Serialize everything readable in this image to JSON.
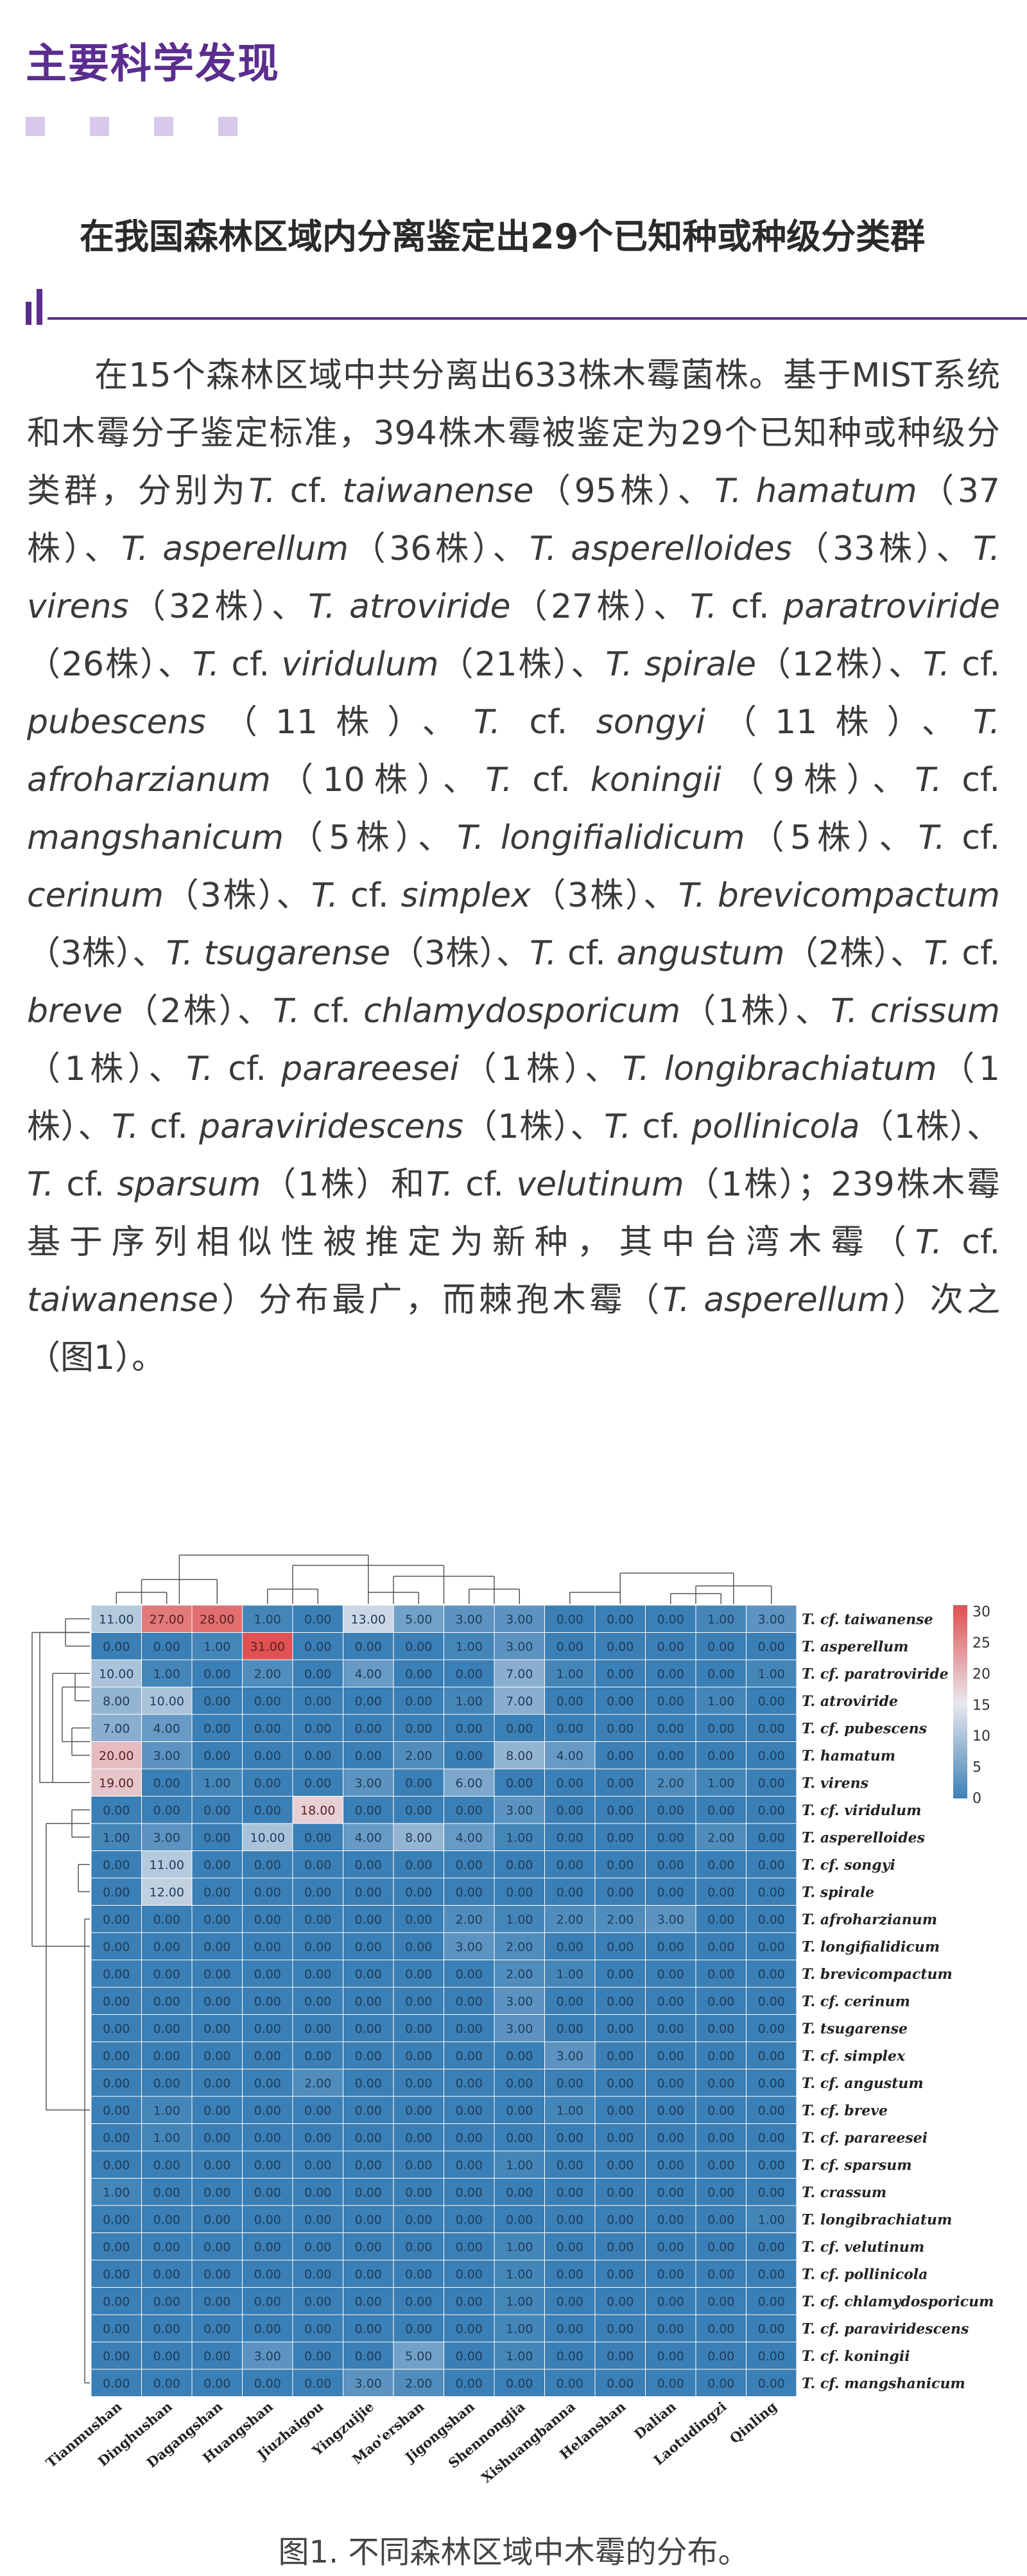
{
  "header": {
    "title": "主要科学发现"
  },
  "subheading": {
    "title": "在我国森林区域内分离鉴定出29个已知种或种级分类群"
  },
  "paragraph": [
    {
      "t": "在15个森林区域中共分离出633株木霉菌株。基于MIST系统和木霉分子鉴定标准，394株木霉被鉴定为29个已知种或种级分类群，分别为"
    },
    {
      "t": "T.",
      "i": 1
    },
    {
      "t": " cf. "
    },
    {
      "t": "taiwanense",
      "i": 1
    },
    {
      "t": "（95株）、"
    },
    {
      "t": "T. hamatum",
      "i": 1
    },
    {
      "t": "（37株）、"
    },
    {
      "t": "T. asperellum",
      "i": 1
    },
    {
      "t": "（36株）、"
    },
    {
      "t": "T. asperelloides",
      "i": 1
    },
    {
      "t": "（33株）、"
    },
    {
      "t": "T. virens",
      "i": 1
    },
    {
      "t": "（32株）、"
    },
    {
      "t": "T. atroviride",
      "i": 1
    },
    {
      "t": "（27株）、"
    },
    {
      "t": "T.",
      "i": 1
    },
    {
      "t": " cf. "
    },
    {
      "t": "paratroviride",
      "i": 1
    },
    {
      "t": "（26株）、"
    },
    {
      "t": "T.",
      "i": 1
    },
    {
      "t": " cf. "
    },
    {
      "t": "viridulum",
      "i": 1
    },
    {
      "t": "（21株）、"
    },
    {
      "t": "T. spirale",
      "i": 1
    },
    {
      "t": "（12株）、"
    },
    {
      "t": "T.",
      "i": 1
    },
    {
      "t": " cf. "
    },
    {
      "t": "pubescens",
      "i": 1
    },
    {
      "t": "（11株）、"
    },
    {
      "t": "T.",
      "i": 1
    },
    {
      "t": " cf. "
    },
    {
      "t": "songyi",
      "i": 1
    },
    {
      "t": "（11株）、"
    },
    {
      "t": "T. afroharzianum",
      "i": 1
    },
    {
      "t": "（10株）、"
    },
    {
      "t": "T.",
      "i": 1
    },
    {
      "t": " cf. "
    },
    {
      "t": "koningii",
      "i": 1
    },
    {
      "t": "（9株）、"
    },
    {
      "t": "T.",
      "i": 1
    },
    {
      "t": " cf. "
    },
    {
      "t": "mangshanicum",
      "i": 1
    },
    {
      "t": "（5株）、"
    },
    {
      "t": "T. longifialidicum",
      "i": 1
    },
    {
      "t": "（5株）、"
    },
    {
      "t": "T.",
      "i": 1
    },
    {
      "t": " cf. "
    },
    {
      "t": "cerinum",
      "i": 1
    },
    {
      "t": "（3株）、"
    },
    {
      "t": "T.",
      "i": 1
    },
    {
      "t": " cf. "
    },
    {
      "t": "simplex",
      "i": 1
    },
    {
      "t": "（3株）、"
    },
    {
      "t": "T. brevicompactum",
      "i": 1
    },
    {
      "t": "（3株）、"
    },
    {
      "t": "T. tsugarense",
      "i": 1
    },
    {
      "t": "（3株）、"
    },
    {
      "t": "T.",
      "i": 1
    },
    {
      "t": " cf. "
    },
    {
      "t": "angustum",
      "i": 1
    },
    {
      "t": "（2株）、"
    },
    {
      "t": "T.",
      "i": 1
    },
    {
      "t": " cf. "
    },
    {
      "t": "breve",
      "i": 1
    },
    {
      "t": "（2株）、"
    },
    {
      "t": "T.",
      "i": 1
    },
    {
      "t": " cf. "
    },
    {
      "t": "chlamydosporicum",
      "i": 1
    },
    {
      "t": "（1株）、"
    },
    {
      "t": "T. crissum",
      "i": 1
    },
    {
      "t": "（1株）、"
    },
    {
      "t": "T.",
      "i": 1
    },
    {
      "t": " cf. "
    },
    {
      "t": "parareesei",
      "i": 1
    },
    {
      "t": "（1株）、"
    },
    {
      "t": "T. longibrachiatum",
      "i": 1
    },
    {
      "t": "（1株）、"
    },
    {
      "t": "T.",
      "i": 1
    },
    {
      "t": " cf. "
    },
    {
      "t": "paraviridescens",
      "i": 1
    },
    {
      "t": "（1株）、"
    },
    {
      "t": "T.",
      "i": 1
    },
    {
      "t": " cf. "
    },
    {
      "t": "pollinicola",
      "i": 1
    },
    {
      "t": "（1株）、"
    },
    {
      "t": "T.",
      "i": 1
    },
    {
      "t": " cf. "
    },
    {
      "t": "sparsum",
      "i": 1
    },
    {
      "t": "（1株）和"
    },
    {
      "t": "T.",
      "i": 1
    },
    {
      "t": " cf. "
    },
    {
      "t": "velutinum",
      "i": 1
    },
    {
      "t": "（1株）；239株木霉基于序列相似性被推定为新种，其中台湾木霉（"
    },
    {
      "t": "T.",
      "i": 1
    },
    {
      "t": " cf. "
    },
    {
      "t": "taiwanense",
      "i": 1
    },
    {
      "t": "）分布最广，而棘孢木霉（"
    },
    {
      "t": "T. asperellum",
      "i": 1
    },
    {
      "t": "）次之（图1）。"
    }
  ],
  "chart_data": {
    "type": "heatmap",
    "columns": [
      "Tianmushan",
      "Dinghushan",
      "Dagangshan",
      "Huangshan",
      "Jiuzhaigou",
      "Yingzuijie",
      "Mao'ershan",
      "Jigongshan",
      "Shennongjia",
      "Xishuangbanna",
      "Helanshan",
      "Dalian",
      "Laotudingzi",
      "Qinling"
    ],
    "rows": [
      "T. cf. taiwanense",
      "T. asperellum",
      "T. cf. paratroviride",
      "T. atroviride",
      "T. cf. pubescens",
      "T. hamatum",
      "T. virens",
      "T. cf. viridulum",
      "T. asperelloides",
      "T. cf. songyi",
      "T. spirale",
      "T. afroharzianum",
      "T. longifialidicum",
      "T. brevicompactum",
      "T. cf. cerinum",
      "T. tsugarense",
      "T. cf. simplex",
      "T. cf. angustum",
      "T. cf. breve",
      "T. cf. parareesei",
      "T. cf. sparsum",
      "T. crassum",
      "T. longibrachiatum",
      "T. cf. velutinum",
      "T. cf. pollinicola",
      "T. cf. chlamydosporicum",
      "T. cf. paraviridescens",
      "T. cf. koningii",
      "T. cf. mangshanicum"
    ],
    "values": [
      [
        11,
        27,
        28,
        1,
        0,
        13,
        5,
        3,
        3,
        0,
        0,
        0,
        1,
        3
      ],
      [
        0,
        0,
        1,
        31,
        0,
        0,
        0,
        1,
        3,
        0,
        0,
        0,
        0,
        0
      ],
      [
        10,
        1,
        0,
        2,
        0,
        4,
        0,
        0,
        7,
        1,
        0,
        0,
        0,
        1
      ],
      [
        8,
        10,
        0,
        0,
        0,
        0,
        0,
        1,
        7,
        0,
        0,
        0,
        1,
        0
      ],
      [
        7,
        4,
        0,
        0,
        0,
        0,
        0,
        0,
        0,
        0,
        0,
        0,
        0,
        0
      ],
      [
        20,
        3,
        0,
        0,
        0,
        0,
        2,
        0,
        8,
        4,
        0,
        0,
        0,
        0
      ],
      [
        19,
        0,
        1,
        0,
        0,
        3,
        0,
        6,
        0,
        0,
        0,
        2,
        1,
        0
      ],
      [
        0,
        0,
        0,
        0,
        18,
        0,
        0,
        0,
        3,
        0,
        0,
        0,
        0,
        0
      ],
      [
        1,
        3,
        0,
        10,
        0,
        4,
        8,
        4,
        1,
        0,
        0,
        0,
        2,
        0
      ],
      [
        0,
        11,
        0,
        0,
        0,
        0,
        0,
        0,
        0,
        0,
        0,
        0,
        0,
        0
      ],
      [
        0,
        12,
        0,
        0,
        0,
        0,
        0,
        0,
        0,
        0,
        0,
        0,
        0,
        0
      ],
      [
        0,
        0,
        0,
        0,
        0,
        0,
        0,
        2,
        1,
        2,
        2,
        3,
        0,
        0
      ],
      [
        0,
        0,
        0,
        0,
        0,
        0,
        0,
        3,
        2,
        0,
        0,
        0,
        0,
        0
      ],
      [
        0,
        0,
        0,
        0,
        0,
        0,
        0,
        0,
        2,
        1,
        0,
        0,
        0,
        0
      ],
      [
        0,
        0,
        0,
        0,
        0,
        0,
        0,
        0,
        3,
        0,
        0,
        0,
        0,
        0
      ],
      [
        0,
        0,
        0,
        0,
        0,
        0,
        0,
        0,
        3,
        0,
        0,
        0,
        0,
        0
      ],
      [
        0,
        0,
        0,
        0,
        0,
        0,
        0,
        0,
        0,
        3,
        0,
        0,
        0,
        0
      ],
      [
        0,
        0,
        0,
        0,
        2,
        0,
        0,
        0,
        0,
        0,
        0,
        0,
        0,
        0
      ],
      [
        0,
        1,
        0,
        0,
        0,
        0,
        0,
        0,
        0,
        1,
        0,
        0,
        0,
        0
      ],
      [
        0,
        1,
        0,
        0,
        0,
        0,
        0,
        0,
        0,
        0,
        0,
        0,
        0,
        0
      ],
      [
        0,
        0,
        0,
        0,
        0,
        0,
        0,
        0,
        1,
        0,
        0,
        0,
        0,
        0
      ],
      [
        1,
        0,
        0,
        0,
        0,
        0,
        0,
        0,
        0,
        0,
        0,
        0,
        0,
        0
      ],
      [
        0,
        0,
        0,
        0,
        0,
        0,
        0,
        0,
        0,
        0,
        0,
        0,
        0,
        1
      ],
      [
        0,
        0,
        0,
        0,
        0,
        0,
        0,
        0,
        1,
        0,
        0,
        0,
        0,
        0
      ],
      [
        0,
        0,
        0,
        0,
        0,
        0,
        0,
        0,
        1,
        0,
        0,
        0,
        0,
        0
      ],
      [
        0,
        0,
        0,
        0,
        0,
        0,
        0,
        0,
        1,
        0,
        0,
        0,
        0,
        0
      ],
      [
        0,
        0,
        0,
        0,
        0,
        0,
        0,
        0,
        1,
        0,
        0,
        0,
        0,
        0
      ],
      [
        0,
        0,
        0,
        3,
        0,
        0,
        5,
        0,
        1,
        0,
        0,
        0,
        0,
        0
      ],
      [
        0,
        0,
        0,
        0,
        0,
        3,
        2,
        0,
        0,
        0,
        0,
        0,
        0,
        0
      ]
    ],
    "colorbar": {
      "ticks": [
        0,
        5,
        10,
        15,
        20,
        25,
        30
      ],
      "range": [
        0,
        31
      ]
    },
    "colors": {
      "low": "#3a7fb5",
      "mid": "#e8e8ee",
      "high": "#e05252"
    },
    "dendrogram": {
      "top": true,
      "left": true
    }
  },
  "figure_caption": "图1. 不同森林区域中木霉的分布。"
}
